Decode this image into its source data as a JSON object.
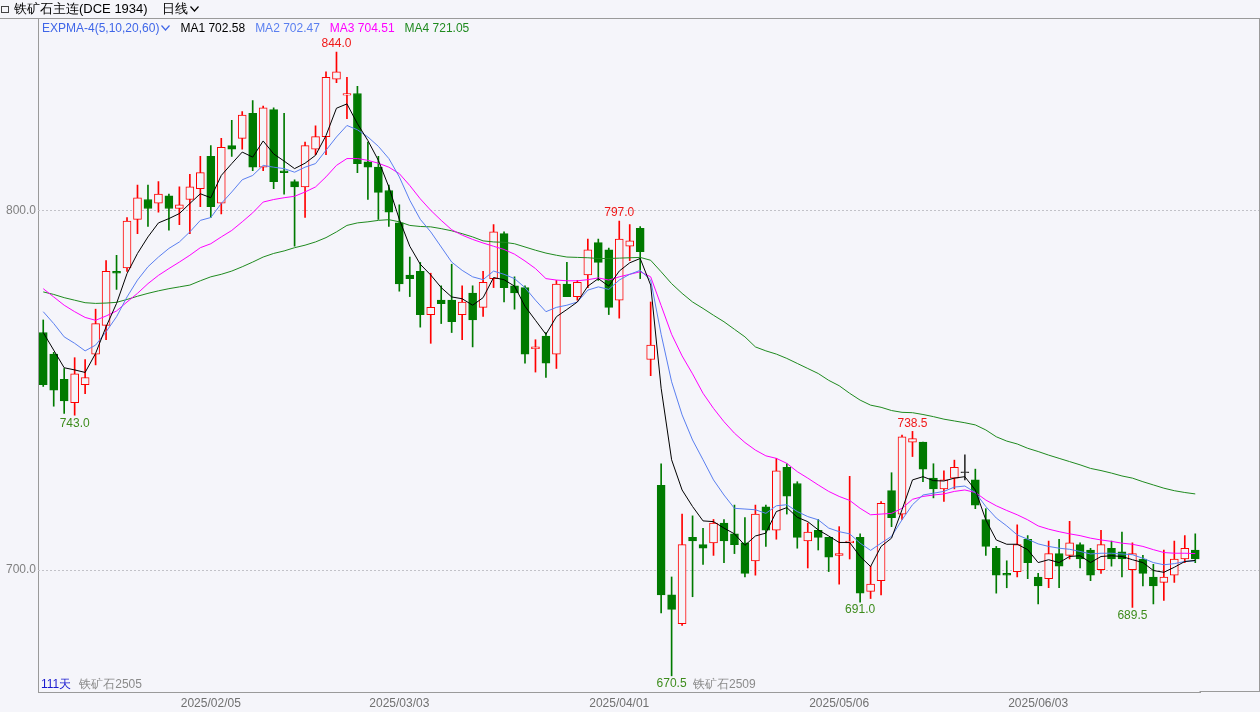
{
  "chart_data": {
    "type": "candlestick",
    "title": "铁矿石主连(DCE 1934)",
    "subtitle": "日线",
    "legend_title": "EXPMA-4(5,10,20,60)",
    "categories": [
      null,
      null,
      null,
      null,
      null,
      null,
      null,
      null,
      null,
      null,
      null,
      null,
      null,
      null,
      null,
      null,
      "2025/02/05",
      null,
      null,
      null,
      null,
      null,
      null,
      null,
      null,
      null,
      null,
      null,
      null,
      null,
      null,
      null,
      null,
      null,
      "2025/03/03",
      null,
      null,
      null,
      null,
      null,
      null,
      null,
      null,
      null,
      null,
      null,
      null,
      null,
      null,
      null,
      null,
      null,
      null,
      null,
      null,
      "2025/04/01",
      null,
      null,
      null,
      null,
      null,
      null,
      null,
      null,
      null,
      null,
      null,
      null,
      null,
      null,
      null,
      null,
      null,
      null,
      null,
      null,
      "2025/05/06",
      null,
      null,
      null,
      null,
      null,
      null,
      null,
      null,
      null,
      null,
      null,
      null,
      null,
      null,
      null,
      null,
      null,
      null,
      "2025/06/03",
      null,
      null,
      null,
      null,
      null,
      null,
      null,
      null,
      null,
      null,
      null,
      null,
      null,
      null,
      null
    ],
    "ohlc": [
      [
        766,
        769.5,
        751,
        751.5
      ],
      [
        760,
        760.5,
        745.5,
        750
      ],
      [
        753,
        756,
        743.5,
        747
      ],
      [
        746.5,
        759,
        743,
        754.5
      ],
      [
        751.5,
        758.5,
        749,
        753.5
      ],
      [
        760,
        772.5,
        757,
        768.5
      ],
      [
        768,
        786,
        764,
        783
      ],
      [
        783,
        787.5,
        778,
        782.5
      ],
      [
        784,
        798,
        783,
        797
      ],
      [
        797.5,
        807,
        793.5,
        803.5
      ],
      [
        803,
        807,
        795.5,
        800.5
      ],
      [
        802,
        808,
        799.5,
        804.5
      ],
      [
        804,
        804.5,
        794.5,
        800.5
      ],
      [
        800.5,
        806.5,
        796,
        801.5
      ],
      [
        803,
        810,
        793.5,
        806.5
      ],
      [
        806,
        815,
        801,
        810.5
      ],
      [
        815,
        818,
        798,
        801
      ],
      [
        802,
        820,
        799,
        817.5
      ],
      [
        818,
        825,
        815,
        817
      ],
      [
        820,
        827.5,
        817,
        826.5
      ],
      [
        827,
        830.5,
        811,
        812
      ],
      [
        812,
        829,
        811,
        828.5
      ],
      [
        828,
        828.5,
        806,
        808
      ],
      [
        811,
        827,
        804.5,
        810.5
      ],
      [
        808,
        808.5,
        790,
        806.5
      ],
      [
        806.5,
        819,
        798,
        818
      ],
      [
        817,
        823.5,
        815.5,
        820.5
      ],
      [
        820.5,
        838.5,
        815.5,
        837
      ],
      [
        836.5,
        844,
        835.5,
        838.5
      ],
      [
        832,
        837,
        825.5,
        832.5
      ],
      [
        832.5,
        834.5,
        810.5,
        813
      ],
      [
        813.5,
        819,
        803,
        812
      ],
      [
        812,
        815,
        797.5,
        805
      ],
      [
        805.5,
        807,
        795.5,
        799.5
      ],
      [
        796.5,
        801.5,
        777.5,
        779.5
      ],
      [
        782,
        787,
        776,
        781
      ],
      [
        783,
        785.5,
        767.5,
        771
      ],
      [
        771,
        782.5,
        763,
        773
      ],
      [
        775,
        779,
        768.5,
        774
      ],
      [
        775,
        785,
        766,
        769
      ],
      [
        771,
        779,
        764,
        774.5
      ],
      [
        777,
        779,
        762,
        769.5
      ],
      [
        773,
        783,
        770.5,
        780
      ],
      [
        781,
        796,
        778.5,
        794
      ],
      [
        793.5,
        794,
        774.5,
        778.5
      ],
      [
        779,
        781.5,
        772.5,
        777
      ],
      [
        778.5,
        779,
        757.5,
        760
      ],
      [
        761.5,
        764,
        755,
        762
      ],
      [
        765,
        766,
        753.5,
        757.5
      ],
      [
        760,
        780.5,
        756,
        779.5
      ],
      [
        779.5,
        785.5,
        776,
        776
      ],
      [
        776,
        780.5,
        775,
        780
      ],
      [
        782,
        792,
        778.5,
        789
      ],
      [
        791,
        792,
        780.5,
        785.5
      ],
      [
        789,
        789.5,
        771,
        773
      ],
      [
        775,
        797,
        770,
        792
      ],
      [
        790,
        796,
        786,
        791.5
      ],
      [
        795,
        795.5,
        781,
        788.5
      ],
      [
        758.5,
        774.5,
        754,
        762.5
      ],
      [
        723.5,
        729.5,
        688,
        693
      ],
      [
        693,
        698,
        670.5,
        689
      ],
      [
        685,
        715.5,
        684.5,
        707
      ],
      [
        709,
        715,
        692.5,
        708
      ],
      [
        707,
        711.5,
        701.5,
        706
      ],
      [
        707.5,
        714,
        704,
        713
      ],
      [
        713,
        714,
        702,
        708
      ],
      [
        710,
        718,
        704.5,
        707
      ],
      [
        707.5,
        714.5,
        698,
        699
      ],
      [
        702.5,
        718,
        698.5,
        715.5
      ],
      [
        717.5,
        718,
        706.5,
        711
      ],
      [
        711,
        731,
        708.5,
        727.5
      ],
      [
        728.5,
        729.5,
        715.5,
        720.5
      ],
      [
        724,
        724.5,
        706,
        709
      ],
      [
        708,
        713,
        700.5,
        710.5
      ],
      [
        711,
        714,
        705.5,
        709
      ],
      [
        709,
        709,
        699.5,
        703.5
      ],
      [
        704,
        712,
        696,
        704.5
      ],
      [
        707.5,
        726,
        703,
        708
      ],
      [
        709,
        710,
        691,
        693.5
      ],
      [
        694,
        701,
        692,
        696
      ],
      [
        697,
        719,
        693,
        718.5
      ],
      [
        722,
        727,
        712,
        714.5
      ],
      [
        715.5,
        737.5,
        714,
        737
      ],
      [
        735.5,
        738.5,
        731.5,
        736.5
      ],
      [
        735.5,
        735.5,
        724.5,
        728
      ],
      [
        725.5,
        729.5,
        720,
        722.5
      ],
      [
        722.5,
        727.5,
        719,
        725
      ],
      [
        725.5,
        730.5,
        722.5,
        728.5
      ],
      [
        727,
        732,
        725,
        727
      ],
      [
        725,
        728,
        717,
        718
      ],
      [
        714,
        717,
        704,
        706.5
      ],
      [
        706,
        706.5,
        693.5,
        698.5
      ],
      [
        699,
        702.5,
        695,
        698.5
      ],
      [
        699.5,
        712.5,
        698,
        707
      ],
      [
        708.5,
        709.5,
        697.5,
        702
      ],
      [
        698,
        699,
        690.5,
        695.5
      ],
      [
        697.5,
        708,
        695,
        704.5
      ],
      [
        704.5,
        708.5,
        695,
        701
      ],
      [
        704,
        713.5,
        703,
        707.5
      ],
      [
        707,
        707.5,
        700.5,
        703
      ],
      [
        705.5,
        706,
        697,
        698.5
      ],
      [
        700,
        711,
        699,
        707
      ],
      [
        706,
        708,
        701,
        703
      ],
      [
        705,
        710.5,
        698,
        703
      ],
      [
        700,
        707.5,
        689.5,
        704.5
      ],
      [
        703,
        704,
        695.5,
        699
      ],
      [
        698,
        701.5,
        690.5,
        695.5
      ],
      [
        696.5,
        705.5,
        691.5,
        698
      ],
      [
        698.5,
        708,
        696.5,
        703
      ],
      [
        703,
        709.5,
        702,
        706
      ],
      [
        705.5,
        710,
        702,
        703
      ]
    ],
    "colors": [
      "#007a00",
      "#007a00",
      "#007a00",
      "#ff0000",
      "#ff0000",
      "#ff0000",
      "#ff0000",
      "#007a00",
      "#ff0000",
      "#ff0000",
      "#007a00",
      "#ff0000",
      "#007a00",
      "#ff0000",
      "#ff0000",
      "#ff0000",
      "#007a00",
      "#ff0000",
      "#007a00",
      "#ff0000",
      "#007a00",
      "#ff0000",
      "#007a00",
      "#007a00",
      "#007a00",
      "#ff0000",
      "#ff0000",
      "#ff0000",
      "#ff0000",
      "#ff0000",
      "#007a00",
      "#007a00",
      "#007a00",
      "#007a00",
      "#007a00",
      "#007a00",
      "#007a00",
      "#ff0000",
      "#007a00",
      "#007a00",
      "#ff0000",
      "#007a00",
      "#ff0000",
      "#ff0000",
      "#007a00",
      "#007a00",
      "#007a00",
      "#ff0000",
      "#007a00",
      "#ff0000",
      "#007a00",
      "#ff0000",
      "#ff0000",
      "#007a00",
      "#007a00",
      "#ff0000",
      "#ff0000",
      "#007a00",
      "#ff0000",
      "#007a00",
      "#007a00",
      "#ff0000",
      "#007a00",
      "#007a00",
      "#ff0000",
      "#007a00",
      "#007a00",
      "#007a00",
      "#ff0000",
      "#007a00",
      "#ff0000",
      "#007a00",
      "#007a00",
      "#ff0000",
      "#007a00",
      "#007a00",
      "#ff0000",
      "#ff0000",
      "#007a00",
      "#ff0000",
      "#ff0000",
      "#007a00",
      "#ff0000",
      "#ff0000",
      "#007a00",
      "#007a00",
      "#ff0000",
      "#ff0000",
      "#333333",
      "#007a00",
      "#007a00",
      "#007a00",
      "#007a00",
      "#ff0000",
      "#007a00",
      "#007a00",
      "#ff0000",
      "#007a00",
      "#ff0000",
      "#007a00",
      "#007a00",
      "#ff0000",
      "#007a00",
      "#007a00",
      "#ff0000",
      "#007a00",
      "#007a00",
      "#ff0000",
      "#ff0000",
      "#ff0000",
      "#007a00"
    ],
    "series": [
      {
        "name": "MA1 702.58",
        "type": "line",
        "color": "#000000",
        "values": [
          766.0,
          761.1,
          756.2,
          755.6,
          754.9,
          760.2,
          767.6,
          774.1,
          782.4,
          788.0,
          792.6,
          796.5,
          797.7,
          799.1,
          801.9,
          804.6,
          803.5,
          809.7,
          813.0,
          816.2,
          814.8,
          819.3,
          815.7,
          813.7,
          811.6,
          813.1,
          815.3,
          820.8,
          828.4,
          829.6,
          824.1,
          819.4,
          813.9,
          806.5,
          797.5,
          790.0,
          785.0,
          782.0,
          778.5,
          775.9,
          775.4,
          773.6,
          775.7,
          781.3,
          780.7,
          778.9,
          773.3,
          769.4,
          765.5,
          770.4,
          772.4,
          774.5,
          778.9,
          781.0,
          778.9,
          783.1,
          785.4,
          786.6,
          779.2,
          750.5,
          730.6,
          722.2,
          717.6,
          713.6,
          713.4,
          711.6,
          710.0,
          706.8,
          709.4,
          710.2,
          716.2,
          717.3,
          714.6,
          713.4,
          711.1,
          709.4,
          707.6,
          707.6,
          703.7,
          700.9,
          706.5,
          708.8,
          716.7,
          725.0,
          725.9,
          724.8,
          724.7,
          725.5,
          725.9,
          722.2,
          713.9,
          708.3,
          707.1,
          707.1,
          705.6,
          702.0,
          702.8,
          702.0,
          703.7,
          703.9,
          702.0,
          703.7,
          703.9,
          703.7,
          702.8,
          702.0,
          699.8,
          699.3,
          700.7,
          702.3,
          702.6
        ]
      },
      {
        "name": "MA2 702.47",
        "type": "line",
        "color": "#5a7ff0",
        "values": [
          771.8,
          768.5,
          764.8,
          763.0,
          760.9,
          762.5,
          766.2,
          770.4,
          775.9,
          780.6,
          784.3,
          787.0,
          789.4,
          791.2,
          794.0,
          797.2,
          798.0,
          801.9,
          805.1,
          808.5,
          809.7,
          812.5,
          812.0,
          811.6,
          810.6,
          812.0,
          813.0,
          816.7,
          820.4,
          823.6,
          822.4,
          820.4,
          817.8,
          814.4,
          809.3,
          802.8,
          797.5,
          794.0,
          789.8,
          785.6,
          783.3,
          781.5,
          780.7,
          783.1,
          782.2,
          781.0,
          778.5,
          775.0,
          771.8,
          773.0,
          773.6,
          774.5,
          777.8,
          778.7,
          778.0,
          780.6,
          782.2,
          783.3,
          780.6,
          765.5,
          752.3,
          743.1,
          736.1,
          730.6,
          725.0,
          720.8,
          717.1,
          716.9,
          716.7,
          715.7,
          717.8,
          718.1,
          716.2,
          714.8,
          713.9,
          711.6,
          710.6,
          710.0,
          707.4,
          705.4,
          707.4,
          709.3,
          713.9,
          718.1,
          720.8,
          721.3,
          721.8,
          723.0,
          723.3,
          721.5,
          717.6,
          714.4,
          712.2,
          709.7,
          708.5,
          707.2,
          706.5,
          706.0,
          705.7,
          705.1,
          704.4,
          704.6,
          704.6,
          704.4,
          704.2,
          703.2,
          702.0,
          701.4,
          701.7,
          702.3,
          702.5
        ]
      },
      {
        "name": "MA3 704.51",
        "type": "line",
        "color": "#ff00ff",
        "values": [
          778.2,
          775.9,
          773.6,
          771.8,
          770.2,
          769.4,
          770.6,
          772.0,
          774.5,
          776.9,
          779.6,
          781.9,
          783.8,
          785.6,
          787.5,
          789.6,
          790.7,
          792.6,
          794.4,
          796.8,
          799.3,
          802.3,
          803.0,
          803.5,
          803.9,
          805.1,
          806.5,
          809.3,
          812.5,
          814.4,
          814.4,
          813.9,
          813.1,
          812.0,
          810.2,
          806.9,
          803.2,
          800.0,
          797.2,
          794.6,
          793.1,
          791.9,
          790.9,
          790.0,
          789.1,
          787.8,
          785.9,
          783.8,
          781.0,
          780.6,
          780.4,
          780.4,
          780.7,
          781.2,
          780.6,
          781.5,
          782.2,
          782.9,
          781.5,
          773.5,
          765.5,
          759.5,
          754.5,
          749.1,
          744.9,
          741.2,
          738.0,
          735.4,
          733.3,
          731.7,
          731.0,
          729.6,
          727.3,
          725.5,
          723.6,
          721.8,
          720.4,
          719.3,
          717.1,
          715.3,
          715.5,
          715.7,
          717.1,
          719.6,
          720.4,
          720.8,
          721.1,
          721.8,
          722.2,
          721.5,
          719.4,
          717.8,
          716.5,
          715.3,
          713.9,
          712.2,
          711.3,
          710.6,
          710.0,
          709.5,
          708.8,
          708.3,
          707.9,
          707.4,
          707.1,
          706.5,
          705.6,
          704.8,
          704.6,
          704.6,
          704.5
        ]
      },
      {
        "name": "MA4 721.05",
        "type": "line",
        "color": "#1f8a1f",
        "values": [
          777.3,
          776.6,
          775.7,
          775.0,
          774.3,
          774.1,
          774.2,
          774.4,
          775.2,
          776.1,
          776.9,
          777.6,
          778.2,
          778.7,
          779.2,
          780.4,
          781.5,
          782.2,
          783.1,
          784.3,
          785.6,
          787.0,
          788.0,
          788.7,
          789.6,
          790.3,
          791.2,
          792.4,
          794.0,
          795.8,
          796.5,
          796.8,
          797.2,
          797.4,
          796.8,
          795.8,
          795.5,
          795.4,
          794.9,
          794.3,
          793.5,
          792.6,
          791.5,
          791.2,
          791.1,
          790.7,
          789.8,
          788.9,
          788.1,
          787.5,
          787.0,
          786.9,
          786.8,
          786.6,
          786.6,
          786.7,
          786.8,
          786.9,
          786.1,
          782.9,
          779.6,
          776.9,
          774.5,
          772.7,
          770.8,
          769.0,
          766.9,
          764.8,
          762.0,
          760.9,
          760.0,
          758.8,
          757.4,
          756.0,
          754.6,
          752.7,
          751.2,
          749.1,
          747.2,
          745.8,
          745.2,
          744.3,
          743.8,
          743.7,
          743.2,
          742.6,
          741.9,
          741.4,
          740.9,
          740.3,
          738.9,
          737.0,
          735.8,
          735.0,
          733.8,
          732.9,
          731.9,
          731.0,
          730.1,
          729.2,
          728.2,
          727.6,
          726.9,
          726.1,
          725.5,
          724.5,
          723.6,
          722.7,
          722.0,
          721.5,
          721.1
        ]
      }
    ],
    "ylim": [
      666,
      853.5
    ],
    "yticks": [
      {
        "value": 700,
        "label": "700.0"
      },
      {
        "value": 800,
        "label": "800.0"
      }
    ],
    "grid": "y",
    "legend": "top left",
    "marker": "none",
    "annotations": [
      "111天",
      "铁矿石2505",
      "铁矿石2509",
      {
        "text": "844.0",
        "y": 844
      },
      {
        "text": "743.0",
        "y": 743
      },
      {
        "text": "797.0",
        "y": 797
      },
      {
        "text": "670.5",
        "y": 670.5
      },
      {
        "text": "691.0",
        "y": 691
      },
      {
        "text": "738.5",
        "y": 738.5
      },
      {
        "text": "689.5",
        "y": 689.5
      }
    ]
  }
}
